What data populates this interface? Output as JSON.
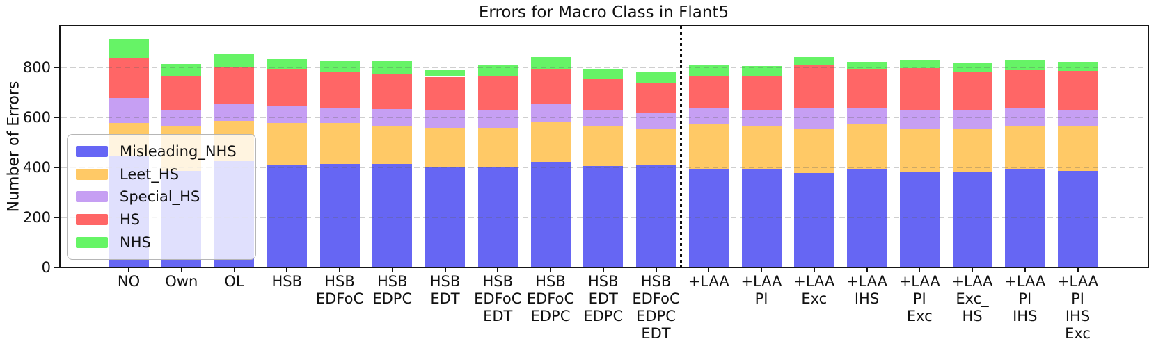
{
  "chart_data": {
    "type": "bar",
    "stacked": true,
    "title": "Errors for Macro Class in Flant5",
    "ylabel": "Number of Errors",
    "xlabel": "",
    "ylim": [
      0,
      970
    ],
    "yticks": [
      0,
      200,
      400,
      600,
      800
    ],
    "grid": "horizontal-dashed",
    "legend_position": "lower-left",
    "separator": {
      "style": "dotted-vertical-line",
      "after_category_index": 10
    },
    "categories": [
      [
        "NO"
      ],
      [
        "Own"
      ],
      [
        "OL"
      ],
      [
        "HSB"
      ],
      [
        "HSB",
        "EDFoC"
      ],
      [
        "HSB",
        "EDPC"
      ],
      [
        "HSB",
        "EDT"
      ],
      [
        "HSB",
        "EDFoC",
        "EDT"
      ],
      [
        "HSB",
        "EDFoC",
        "EDPC"
      ],
      [
        "HSB",
        "EDT",
        "EDPC"
      ],
      [
        "HSB",
        "EDFoC",
        "EDPC",
        "EDT"
      ],
      [
        "+LAA"
      ],
      [
        "+LAA",
        "PI"
      ],
      [
        "+LAA",
        "Exc"
      ],
      [
        "+LAA",
        "IHS"
      ],
      [
        "+LAA",
        "PI",
        "Exc"
      ],
      [
        "+LAA",
        "Exc_",
        "HS"
      ],
      [
        "+LAA",
        "PI",
        "IHS"
      ],
      [
        "+LAA",
        "PI",
        "IHS",
        "Exc"
      ]
    ],
    "series": [
      {
        "name": "Misleading_NHS",
        "color": "#6666F5",
        "fill": "rgba(0,0,235,0.6)",
        "values": [
          447,
          385,
          425,
          410,
          414,
          413,
          404,
          399,
          422,
          406,
          408,
          396,
          394,
          378,
          392,
          382,
          381,
          396,
          387
        ]
      },
      {
        "name": "Leet_HS",
        "color": "#FFC966",
        "fill": "rgba(255,165,0,0.6)",
        "values": [
          130,
          183,
          161,
          168,
          164,
          154,
          154,
          159,
          160,
          157,
          146,
          179,
          169,
          178,
          180,
          172,
          171,
          170,
          176
        ]
      },
      {
        "name": "Special_HS",
        "color": "#C69FF3",
        "fill": "rgba(160,95,235,0.6)",
        "values": [
          102,
          63,
          70,
          69,
          60,
          68,
          71,
          74,
          72,
          66,
          63,
          62,
          69,
          81,
          65,
          77,
          79,
          71,
          69
        ]
      },
      {
        "name": "HS",
        "color": "#FF6666",
        "fill": "rgba(255,0,0,0.6)",
        "values": [
          161,
          136,
          146,
          148,
          143,
          139,
          134,
          136,
          140,
          125,
          123,
          131,
          135,
          174,
          156,
          168,
          152,
          153,
          155
        ]
      },
      {
        "name": "NHS",
        "color": "#66F566",
        "fill": "rgba(0,235,0,0.6)",
        "values": [
          75,
          47,
          51,
          40,
          44,
          51,
          27,
          43,
          47,
          41,
          45,
          43,
          39,
          30,
          29,
          33,
          35,
          37,
          35
        ]
      }
    ],
    "totals": [
      915,
      814,
      853,
      835,
      825,
      825,
      790,
      811,
      841,
      795,
      785,
      811,
      806,
      841,
      822,
      832,
      818,
      827,
      822
    ]
  }
}
